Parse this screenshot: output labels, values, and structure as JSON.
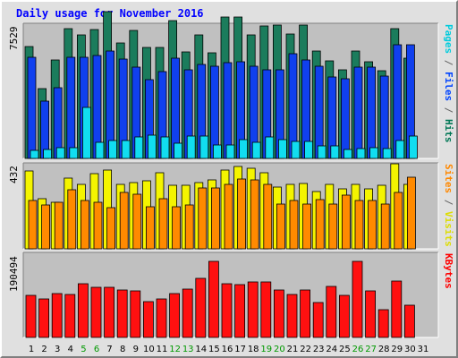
{
  "title": "Daily usage for November 2016",
  "chart_data": {
    "type": "bar",
    "categories": [
      "1",
      "2",
      "3",
      "4",
      "5",
      "6",
      "7",
      "8",
      "9",
      "10",
      "11",
      "12",
      "13",
      "14",
      "15",
      "16",
      "17",
      "18",
      "19",
      "20",
      "21",
      "22",
      "23",
      "24",
      "25",
      "26",
      "27",
      "28",
      "29",
      "30",
      "31"
    ],
    "weekend_days": [
      "5",
      "6",
      "12",
      "13",
      "19",
      "20",
      "26",
      "27"
    ],
    "panels": [
      {
        "ymax_label": "7529",
        "ymax": 7529,
        "legend": [
          {
            "text": "Pages",
            "color": "#00ccdd"
          },
          {
            "text": " / ",
            "color": "#666666"
          },
          {
            "text": "Files",
            "color": "#0044ff"
          },
          {
            "text": " / ",
            "color": "#666666"
          },
          {
            "text": "Hits",
            "color": "#007755"
          }
        ],
        "series": [
          {
            "name": "Hits",
            "color": "#1b7c5c",
            "values": [
              6250,
              3900,
              5500,
              7250,
              6900,
              7200,
              8200,
              6450,
              7150,
              6200,
              6200,
              7700,
              5950,
              6900,
              5900,
              7900,
              7900,
              6900,
              7400,
              7450,
              6950,
              7450,
              6000,
              5450,
              4950,
              6000,
              5400,
              4900,
              7250,
              5600
            ]
          },
          {
            "name": "Files",
            "color": "#1040ee",
            "values": [
              5650,
              3200,
              3950,
              5650,
              5650,
              5750,
              5960,
              5550,
              5070,
              4410,
              4860,
              5590,
              4960,
              5260,
              5150,
              5340,
              5400,
              5150,
              4950,
              4950,
              5820,
              5490,
              5150,
              4550,
              4430,
              5080,
              5110,
              4580,
              6310,
              6320
            ]
          },
          {
            "name": "Pages",
            "color": "#11ddf0",
            "values": [
              440,
              480,
              590,
              600,
              2860,
              900,
              1010,
              1010,
              1190,
              1290,
              1190,
              870,
              1240,
              1240,
              750,
              770,
              1060,
              920,
              1190,
              1060,
              930,
              970,
              680,
              680,
              480,
              560,
              590,
              570,
              980,
              1260
            ]
          }
        ]
      },
      {
        "ymax_label": "432",
        "ymax": 432,
        "legend": [
          {
            "text": "Sites",
            "color": "#ff8800"
          },
          {
            "text": " / ",
            "color": "#666666"
          },
          {
            "text": "Visits",
            "color": "#dddd00"
          }
        ],
        "series": [
          {
            "name": "Visits",
            "color": "#f4f400",
            "values": [
              392,
              253,
              232,
              355,
              324,
              378,
              394,
              322,
              331,
              341,
              383,
              320,
              320,
              334,
              348,
              396,
              412,
              404,
              383,
              309,
              322,
              330,
              289,
              325,
              303,
              325,
              303,
              320,
              426,
              326
            ]
          },
          {
            "name": "Sites",
            "color": "#ff8a00",
            "values": [
              242,
              220,
              235,
              297,
              242,
              232,
              206,
              284,
              276,
              211,
              253,
              213,
              220,
              305,
              305,
              326,
              350,
              346,
              326,
              223,
              243,
              223,
              246,
              225,
              270,
              243,
              242,
              225,
              284,
              359
            ]
          }
        ]
      },
      {
        "ymax_label": "190494",
        "ymax": 190494,
        "legend": [
          {
            "text": "KBytes",
            "color": "#ff0000"
          }
        ],
        "series": [
          {
            "name": "KBytes",
            "color": "#ff1010",
            "values": [
              94470,
              86530,
              98090,
              96690,
              120150,
              112900,
              112900,
              105490,
              104960,
              79950,
              86830,
              97310,
              108890,
              132070,
              171150,
              121180,
              118450,
              125170,
              123510,
              106070,
              95930,
              106960,
              78980,
              114570,
              95000,
              171180,
              104990,
              62290,
              126620,
              72510
            ]
          }
        ]
      }
    ]
  }
}
